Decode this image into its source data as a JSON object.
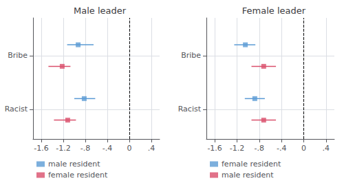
{
  "chart_data": [
    {
      "type": "scatter",
      "title": "Male leader",
      "series": [
        {
          "name": "male resident",
          "color": "#5B9BD5",
          "marker": "square",
          "x": [
            -0.93,
            -0.82
          ],
          "values": [
            4.0,
            2.0
          ],
          "xerr_lo": [
            0.2,
            0.18
          ],
          "xerr_hi": [
            0.28,
            0.2
          ]
        },
        {
          "name": "female resident",
          "color": "#D94F6B",
          "marker": "square",
          "x": [
            -1.22,
            -1.12
          ],
          "values": [
            3.2,
            1.2
          ],
          "xerr_lo": [
            0.25,
            0.25
          ],
          "xerr_hi": [
            0.15,
            0.15
          ]
        }
      ],
      "xlim": [
        -1.75,
        0.55
      ],
      "xticks": [
        -1.6,
        -1.2,
        {
          "value": -0.8,
          "label": "-.8"
        },
        {
          "value": -0.4,
          "label": "-.4"
        },
        0,
        {
          "value": 0.4,
          "label": ".4"
        }
      ],
      "ylim": [
        0.5,
        5.0
      ],
      "yticks": [
        {
          "value": 3.6,
          "label": "Bribe"
        },
        {
          "value": 1.6,
          "label": "Racist"
        }
      ],
      "vline_x": 0.0,
      "grid": true,
      "legend": "lower left"
    },
    {
      "type": "scatter",
      "title": "Female leader",
      "series": [
        {
          "name": "female resident",
          "color": "#5B9BD5",
          "marker": "square",
          "x": [
            -1.05,
            -0.88
          ],
          "values": [
            4.0,
            2.0
          ],
          "xerr_lo": [
            0.2,
            0.18
          ],
          "xerr_hi": [
            0.18,
            0.18
          ]
        },
        {
          "name": "male resident",
          "color": "#D94F6B",
          "marker": "square",
          "x": [
            -0.72,
            -0.72
          ],
          "values": [
            3.2,
            1.2
          ],
          "xerr_lo": [
            0.22,
            0.22
          ],
          "xerr_hi": [
            0.22,
            0.22
          ]
        }
      ],
      "xlim": [
        -1.75,
        0.55
      ],
      "xticks": [
        -1.6,
        -1.2,
        {
          "value": -0.8,
          "label": "-.8"
        },
        {
          "value": -0.4,
          "label": "-.4"
        },
        0,
        {
          "value": 0.4,
          "label": ".4"
        }
      ],
      "ylim": [
        0.5,
        5.0
      ],
      "yticks": [
        {
          "value": 3.6,
          "label": "Bribe"
        },
        {
          "value": 1.6,
          "label": "Racist"
        }
      ],
      "vline_x": 0.0,
      "grid": true,
      "legend": "lower left"
    }
  ]
}
